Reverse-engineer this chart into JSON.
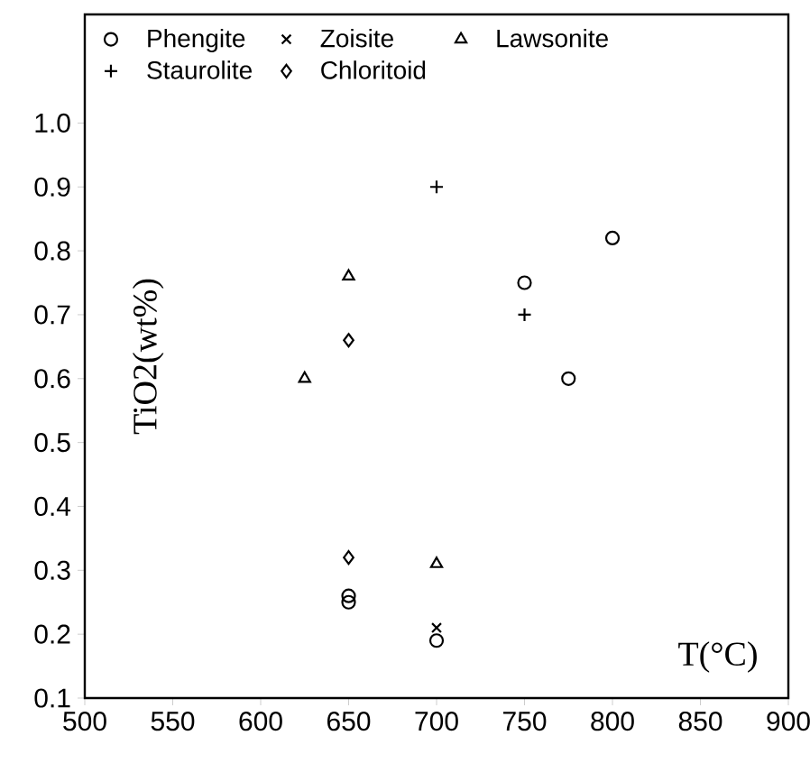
{
  "chart_data": {
    "type": "scatter",
    "xlabel": "T(°C)",
    "ylabel": "TiO2(wt%)",
    "xlim": [
      500,
      900
    ],
    "ylim": [
      0.1,
      1.17
    ],
    "xticks": [
      500,
      550,
      600,
      650,
      700,
      750,
      800,
      850,
      900
    ],
    "yticks": [
      0.1,
      0.2,
      0.3,
      0.4,
      0.5,
      0.6,
      0.7,
      0.8,
      0.9,
      {
        "value": 1.0,
        "label": "1.0"
      }
    ],
    "legend": "top left",
    "grid": false,
    "series": [
      {
        "name": "Phengite",
        "color": "#000000",
        "marker": "circle",
        "x": [
          650,
          650,
          700,
          750,
          775,
          800
        ],
        "values": [
          0.25,
          0.26,
          0.19,
          0.75,
          0.6,
          0.82
        ]
      },
      {
        "name": "Zoisite",
        "color": "#000000",
        "marker": "cross",
        "x": [
          700
        ],
        "values": [
          0.21
        ]
      },
      {
        "name": "Lawsonite",
        "color": "#000000",
        "marker": "triangle",
        "x": [
          625,
          650,
          700
        ],
        "values": [
          0.6,
          0.76,
          0.31
        ]
      },
      {
        "name": "Staurolite",
        "color": "#000000",
        "marker": "plus",
        "x": [
          700,
          750
        ],
        "values": [
          0.9,
          0.7
        ]
      },
      {
        "name": "Chloritoid",
        "color": "#000000",
        "marker": "diamond",
        "x": [
          650,
          650
        ],
        "values": [
          0.66,
          0.32
        ]
      }
    ]
  }
}
